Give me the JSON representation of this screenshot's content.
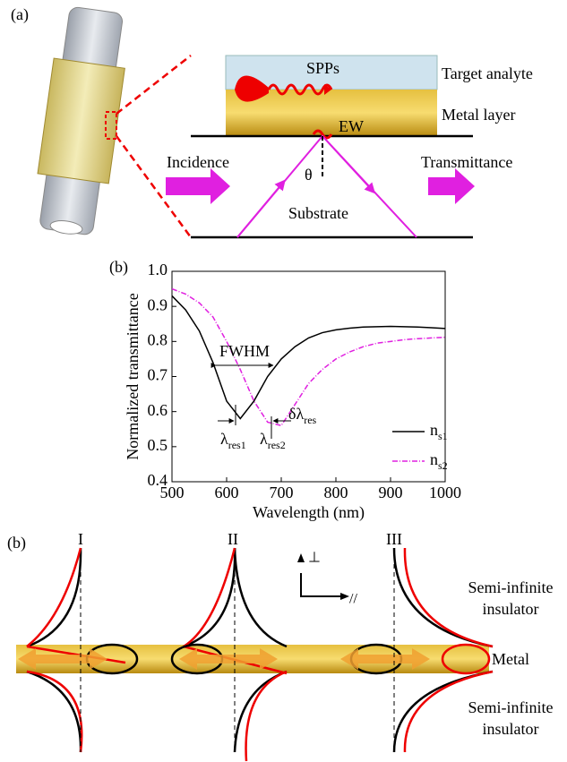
{
  "panel_a": {
    "label": "(a)",
    "spps": "SPPs",
    "target": "Target analyte",
    "metal": "Metal layer",
    "ew": "EW",
    "incidence": "Incidence",
    "theta": "θ",
    "transmittance": "Transmittance",
    "substrate": "Substrate"
  },
  "chart_data": {
    "type": "line",
    "label": "(b)",
    "x_label": "Wavelength (nm)",
    "y_label": "Normalized transmittance",
    "x": [
      500,
      525,
      550,
      575,
      600,
      625,
      650,
      675,
      700,
      725,
      750,
      775,
      800,
      825,
      850,
      875,
      900,
      925,
      950,
      975,
      1000
    ],
    "series": [
      {
        "name": "n",
        "name_sub": "s1",
        "color": "#000000",
        "dash": "none",
        "values": [
          0.93,
          0.89,
          0.83,
          0.74,
          0.63,
          0.58,
          0.63,
          0.7,
          0.75,
          0.785,
          0.81,
          0.825,
          0.833,
          0.838,
          0.841,
          0.842,
          0.843,
          0.842,
          0.841,
          0.839,
          0.837
        ]
      },
      {
        "name": "n",
        "name_sub": "s2",
        "color": "#e020e0",
        "dash": "6 2 1 2",
        "values": [
          0.95,
          0.935,
          0.91,
          0.87,
          0.8,
          0.72,
          0.63,
          0.57,
          0.56,
          0.62,
          0.68,
          0.72,
          0.75,
          0.77,
          0.785,
          0.795,
          0.8,
          0.805,
          0.808,
          0.81,
          0.812
        ]
      }
    ],
    "xlim": [
      500,
      1000
    ],
    "ylim": [
      0.4,
      1.0
    ],
    "xticks": [
      500,
      600,
      700,
      800,
      900,
      1000
    ],
    "yticks": [
      0.4,
      0.5,
      0.6,
      0.7,
      0.8,
      0.9,
      {
        "value": 1,
        "label": "1.0"
      }
    ],
    "annotations": {
      "fwhm": "FWHM",
      "res1": {
        "text": "λ",
        "sub": "res1"
      },
      "res2": {
        "text": "λ",
        "sub": "res2"
      },
      "delta": {
        "text": "δλ",
        "sub": "res"
      }
    }
  },
  "panel_c": {
    "label": "(b)",
    "modes": [
      "I",
      "II",
      "III"
    ],
    "perp": "⊥",
    "parallel": "//",
    "insulator_top": [
      "Semi-infinite",
      "insulator"
    ],
    "metal": "Metal",
    "insulator_bottom": [
      "Semi-infinite",
      "insulator"
    ]
  }
}
